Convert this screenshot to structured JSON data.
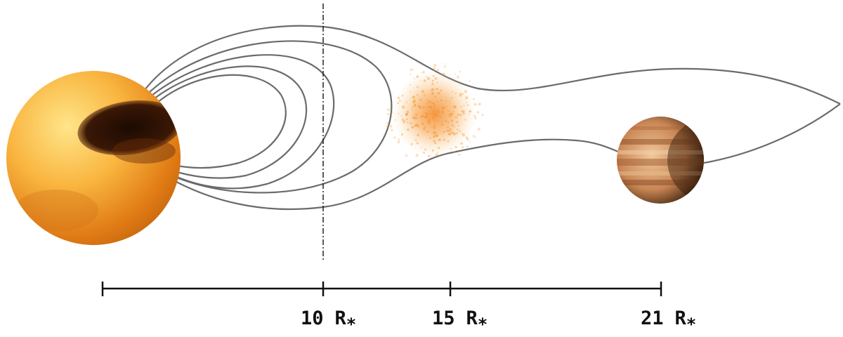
{
  "scale": {
    "ticks": [
      {
        "value": "10",
        "unit": "R",
        "subscript": "*"
      },
      {
        "value": "15",
        "unit": "R",
        "subscript": "*"
      },
      {
        "value": "21",
        "unit": "R",
        "subscript": "*"
      }
    ]
  },
  "colors": {
    "field_lines": "#6b6b6b",
    "star_light": "#ffd57a",
    "star_mid": "#f7a734",
    "star_dark": "#c96a10",
    "spot": "#2a1206",
    "cloud": "#f49a3a",
    "planet_light": "#e8b78a",
    "planet_band": "#9c5a2e",
    "planet_dark": "#4a2a14",
    "scale_line": "#111111"
  },
  "icons": {
    "star": "star-icon",
    "planet": "planet-icon",
    "plasma_cloud": "plasma-cloud-icon"
  }
}
